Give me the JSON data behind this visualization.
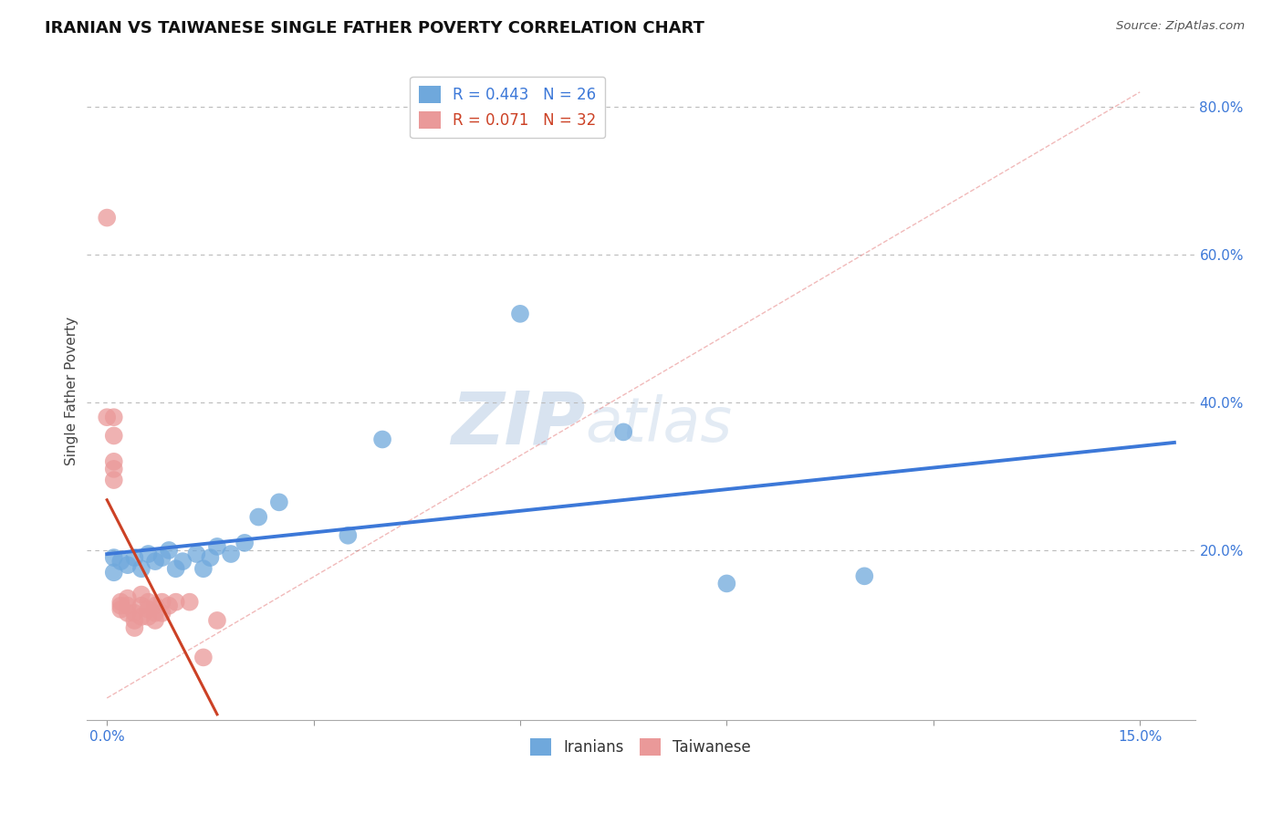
{
  "title": "IRANIAN VS TAIWANESE SINGLE FATHER POVERTY CORRELATION CHART",
  "source": "Source: ZipAtlas.com",
  "ylabel_label": "Single Father Poverty",
  "x_ticks": [
    0.0,
    0.03,
    0.06,
    0.09,
    0.12,
    0.15
  ],
  "x_tick_labels": [
    "0.0%",
    "",
    "",
    "",
    "",
    "15.0%"
  ],
  "y_ticks": [
    0.0,
    0.2,
    0.4,
    0.6,
    0.8
  ],
  "y_tick_labels": [
    "",
    "20.0%",
    "40.0%",
    "60.0%",
    "80.0%"
  ],
  "xlim": [
    -0.003,
    0.158
  ],
  "ylim": [
    -0.03,
    0.86
  ],
  "iranian_x": [
    0.001,
    0.001,
    0.002,
    0.003,
    0.004,
    0.005,
    0.006,
    0.007,
    0.008,
    0.009,
    0.01,
    0.011,
    0.013,
    0.014,
    0.015,
    0.016,
    0.018,
    0.02,
    0.022,
    0.025,
    0.035,
    0.04,
    0.06,
    0.075,
    0.09,
    0.11
  ],
  "iranian_y": [
    0.17,
    0.19,
    0.185,
    0.18,
    0.19,
    0.175,
    0.195,
    0.185,
    0.19,
    0.2,
    0.175,
    0.185,
    0.195,
    0.175,
    0.19,
    0.205,
    0.195,
    0.21,
    0.245,
    0.265,
    0.22,
    0.35,
    0.52,
    0.36,
    0.155,
    0.165
  ],
  "taiwanese_x": [
    0.0,
    0.0,
    0.001,
    0.001,
    0.001,
    0.001,
    0.001,
    0.002,
    0.002,
    0.002,
    0.003,
    0.003,
    0.003,
    0.004,
    0.004,
    0.004,
    0.005,
    0.005,
    0.005,
    0.006,
    0.006,
    0.006,
    0.007,
    0.007,
    0.007,
    0.008,
    0.008,
    0.009,
    0.01,
    0.012,
    0.014,
    0.016
  ],
  "taiwanese_y": [
    0.65,
    0.38,
    0.38,
    0.355,
    0.32,
    0.31,
    0.295,
    0.13,
    0.125,
    0.12,
    0.135,
    0.125,
    0.115,
    0.115,
    0.105,
    0.095,
    0.14,
    0.125,
    0.11,
    0.13,
    0.12,
    0.11,
    0.125,
    0.115,
    0.105,
    0.13,
    0.115,
    0.125,
    0.13,
    0.13,
    0.055,
    0.105
  ],
  "R_iranian": 0.443,
  "N_iranian": 26,
  "R_taiwanese": 0.071,
  "N_taiwanese": 32,
  "blue_dot_color": "#6fa8dc",
  "pink_dot_color": "#ea9999",
  "blue_line_color": "#3c78d8",
  "pink_line_color": "#cc4125",
  "diag_line_color": "#e06666",
  "watermark_zip_color": "#c5d5e8",
  "watermark_atlas_color": "#c5d5e8",
  "background_color": "#ffffff",
  "title_fontsize": 13,
  "axis_label_fontsize": 11,
  "tick_fontsize": 11,
  "legend_fontsize": 12
}
